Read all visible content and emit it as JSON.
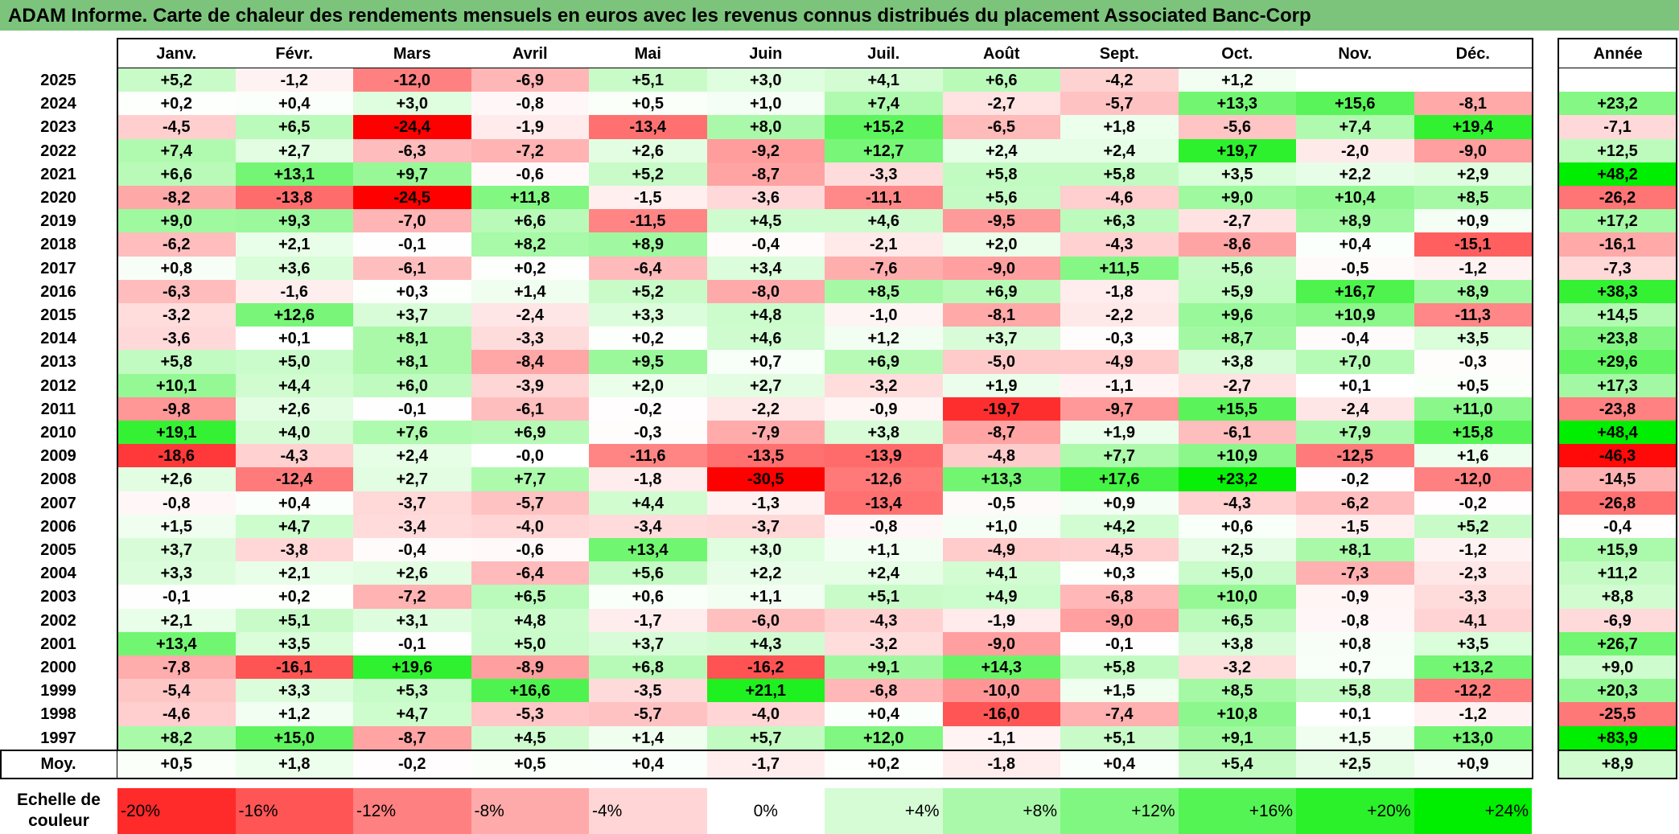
{
  "title": "ADAM Informe. Carte de chaleur des rendements mensuels en euros avec les revenus connus distribués du placement Associated Banc-Corp",
  "chart_data": {
    "type": "heatmap",
    "title": "ADAM Informe. Carte de chaleur des rendements mensuels en euros avec les revenus connus distribués du placement Associated Banc-Corp",
    "columns": [
      "Janv.",
      "Févr.",
      "Mars",
      "Avril",
      "Mai",
      "Juin",
      "Juil.",
      "Août",
      "Sept.",
      "Oct.",
      "Nov.",
      "Déc."
    ],
    "annual_header": "Année",
    "rows": [
      {
        "year": "2025",
        "values": [
          "+5,2",
          "-1,2",
          "-12,0",
          "-6,9",
          "+5,1",
          "+3,0",
          "+4,1",
          "+6,6",
          "-4,2",
          "+1,2",
          "",
          ""
        ],
        "annual": ""
      },
      {
        "year": "2024",
        "values": [
          "+0,2",
          "+0,4",
          "+3,0",
          "-0,8",
          "+0,5",
          "+1,0",
          "+7,4",
          "-2,7",
          "-5,7",
          "+13,3",
          "+15,6",
          "-8,1"
        ],
        "annual": "+23,2"
      },
      {
        "year": "2023",
        "values": [
          "-4,5",
          "+6,5",
          "-24,4",
          "-1,9",
          "-13,4",
          "+8,0",
          "+15,2",
          "-6,5",
          "+1,8",
          "-5,6",
          "+7,4",
          "+19,4"
        ],
        "annual": "-7,1"
      },
      {
        "year": "2022",
        "values": [
          "+7,4",
          "+2,7",
          "-6,3",
          "-7,2",
          "+2,6",
          "-9,2",
          "+12,7",
          "+2,4",
          "+2,4",
          "+19,7",
          "-2,0",
          "-9,0"
        ],
        "annual": "+12,5"
      },
      {
        "year": "2021",
        "values": [
          "+6,6",
          "+13,1",
          "+9,7",
          "-0,6",
          "+5,2",
          "-8,7",
          "-3,3",
          "+5,8",
          "+5,8",
          "+3,5",
          "+2,2",
          "+2,9"
        ],
        "annual": "+48,2"
      },
      {
        "year": "2020",
        "values": [
          "-8,2",
          "-13,8",
          "-24,5",
          "+11,8",
          "-1,5",
          "-3,6",
          "-11,1",
          "+5,6",
          "-4,6",
          "+9,0",
          "+10,4",
          "+8,5"
        ],
        "annual": "-26,2"
      },
      {
        "year": "2019",
        "values": [
          "+9,0",
          "+9,3",
          "-7,0",
          "+6,6",
          "-11,5",
          "+4,5",
          "+4,6",
          "-9,5",
          "+6,3",
          "-2,7",
          "+8,9",
          "+0,9"
        ],
        "annual": "+17,2"
      },
      {
        "year": "2018",
        "values": [
          "-6,2",
          "+2,1",
          "-0,1",
          "+8,2",
          "+8,9",
          "-0,4",
          "-2,1",
          "+2,0",
          "-4,3",
          "-8,6",
          "+0,4",
          "-15,1"
        ],
        "annual": "-16,1"
      },
      {
        "year": "2017",
        "values": [
          "+0,8",
          "+3,6",
          "-6,1",
          "+0,2",
          "-6,4",
          "+3,4",
          "-7,6",
          "-9,0",
          "+11,5",
          "+5,6",
          "-0,5",
          "-1,2"
        ],
        "annual": "-7,3"
      },
      {
        "year": "2016",
        "values": [
          "-6,3",
          "-1,6",
          "+0,3",
          "+1,4",
          "+5,2",
          "-8,0",
          "+8,5",
          "+6,9",
          "-1,8",
          "+5,9",
          "+16,7",
          "+8,9"
        ],
        "annual": "+38,3"
      },
      {
        "year": "2015",
        "values": [
          "-3,2",
          "+12,6",
          "+3,7",
          "-2,4",
          "+3,3",
          "+4,8",
          "-1,0",
          "-8,1",
          "-2,2",
          "+9,6",
          "+10,9",
          "-11,3"
        ],
        "annual": "+14,5"
      },
      {
        "year": "2014",
        "values": [
          "-3,6",
          "+0,1",
          "+8,1",
          "-3,3",
          "+0,2",
          "+4,6",
          "+1,2",
          "+3,7",
          "-0,3",
          "+8,7",
          "-0,4",
          "+3,5"
        ],
        "annual": "+23,8"
      },
      {
        "year": "2013",
        "values": [
          "+5,8",
          "+5,0",
          "+8,1",
          "-8,4",
          "+9,5",
          "+0,7",
          "+6,9",
          "-5,0",
          "-4,9",
          "+3,8",
          "+7,0",
          "-0,3"
        ],
        "annual": "+29,6"
      },
      {
        "year": "2012",
        "values": [
          "+10,1",
          "+4,4",
          "+6,0",
          "-3,9",
          "+2,0",
          "+2,7",
          "-3,2",
          "+1,9",
          "-1,1",
          "-2,7",
          "+0,1",
          "+0,5"
        ],
        "annual": "+17,3"
      },
      {
        "year": "2011",
        "values": [
          "-9,8",
          "+2,6",
          "-0,1",
          "-6,1",
          "-0,2",
          "-2,2",
          "-0,9",
          "-19,7",
          "-9,7",
          "+15,5",
          "-2,4",
          "+11,0"
        ],
        "annual": "-23,8"
      },
      {
        "year": "2010",
        "values": [
          "+19,1",
          "+4,0",
          "+7,6",
          "+6,9",
          "-0,3",
          "-7,9",
          "+3,8",
          "-8,7",
          "+1,9",
          "-6,1",
          "+7,9",
          "+15,8"
        ],
        "annual": "+48,4"
      },
      {
        "year": "2009",
        "values": [
          "-18,6",
          "-4,3",
          "+2,4",
          "-0,0",
          "-11,6",
          "-13,5",
          "-13,9",
          "-4,8",
          "+7,7",
          "+10,9",
          "-12,5",
          "+1,6"
        ],
        "annual": "-46,3"
      },
      {
        "year": "2008",
        "values": [
          "+2,6",
          "-12,4",
          "+2,7",
          "+7,7",
          "-1,8",
          "-30,5",
          "-12,6",
          "+13,3",
          "+17,6",
          "+23,2",
          "-0,2",
          "-12,0"
        ],
        "annual": "-14,5"
      },
      {
        "year": "2007",
        "values": [
          "-0,8",
          "+0,4",
          "-3,7",
          "-5,7",
          "+4,4",
          "-1,3",
          "-13,4",
          "-0,5",
          "+0,9",
          "-4,3",
          "-6,2",
          "-0,2"
        ],
        "annual": "-26,8"
      },
      {
        "year": "2006",
        "values": [
          "+1,5",
          "+4,7",
          "-3,4",
          "-4,0",
          "-3,4",
          "-3,7",
          "-0,8",
          "+1,0",
          "+4,2",
          "+0,6",
          "-1,5",
          "+5,2"
        ],
        "annual": "-0,4"
      },
      {
        "year": "2005",
        "values": [
          "+3,7",
          "-3,8",
          "-0,4",
          "-0,6",
          "+13,4",
          "+3,0",
          "+1,1",
          "-4,9",
          "-4,5",
          "+2,5",
          "+8,1",
          "-1,2"
        ],
        "annual": "+15,9"
      },
      {
        "year": "2004",
        "values": [
          "+3,3",
          "+2,1",
          "+2,6",
          "-6,4",
          "+5,6",
          "+2,2",
          "+2,4",
          "+4,1",
          "+0,3",
          "+5,0",
          "-7,3",
          "-2,3"
        ],
        "annual": "+11,2"
      },
      {
        "year": "2003",
        "values": [
          "-0,1",
          "+0,2",
          "-7,2",
          "+6,5",
          "+0,6",
          "+1,1",
          "+5,1",
          "+4,9",
          "-6,8",
          "+10,0",
          "-0,9",
          "-3,3"
        ],
        "annual": "+8,8"
      },
      {
        "year": "2002",
        "values": [
          "+2,1",
          "+5,1",
          "+3,1",
          "+4,8",
          "-1,7",
          "-6,0",
          "-4,3",
          "-1,9",
          "-9,0",
          "+6,5",
          "-0,8",
          "-4,1"
        ],
        "annual": "-6,9"
      },
      {
        "year": "2001",
        "values": [
          "+13,4",
          "+3,5",
          "-0,1",
          "+5,0",
          "+3,7",
          "+4,3",
          "-3,2",
          "-9,0",
          "-0,1",
          "+3,8",
          "+0,8",
          "+3,5"
        ],
        "annual": "+26,7"
      },
      {
        "year": "2000",
        "values": [
          "-7,8",
          "-16,1",
          "+19,6",
          "-8,9",
          "+6,8",
          "-16,2",
          "+9,1",
          "+14,3",
          "+5,8",
          "-3,2",
          "+0,7",
          "+13,2"
        ],
        "annual": "+9,0"
      },
      {
        "year": "1999",
        "values": [
          "-5,4",
          "+3,3",
          "+5,3",
          "+16,6",
          "-3,5",
          "+21,1",
          "-6,8",
          "-10,0",
          "+1,5",
          "+8,5",
          "+5,8",
          "-12,2"
        ],
        "annual": "+20,3"
      },
      {
        "year": "1998",
        "values": [
          "-4,6",
          "+1,2",
          "+4,7",
          "-5,3",
          "-5,7",
          "-4,0",
          "+0,4",
          "-16,0",
          "-7,4",
          "+10,8",
          "+0,1",
          "-1,2"
        ],
        "annual": "-25,5"
      },
      {
        "year": "1997",
        "values": [
          "+8,2",
          "+15,0",
          "-8,7",
          "+4,5",
          "+1,4",
          "+5,7",
          "+12,0",
          "-1,1",
          "+5,1",
          "+9,1",
          "+1,5",
          "+13,0"
        ],
        "annual": "+83,9"
      }
    ],
    "average": {
      "label": "Moy.",
      "values": [
        "+0,5",
        "+1,8",
        "-0,2",
        "+0,5",
        "+0,4",
        "-1,7",
        "+0,2",
        "-1,8",
        "+0,4",
        "+5,4",
        "+2,5",
        "+0,9"
      ],
      "annual": "+8,9"
    },
    "color_scale": {
      "label": "Echelle de couleur",
      "steps": [
        "-20%",
        "-16%",
        "-12%",
        "-8%",
        "-4%",
        "0%",
        "+4%",
        "+8%",
        "+12%",
        "+16%",
        "+20%",
        "+24%"
      ],
      "negative_color": "#ff0000",
      "zero_color": "#ffffff",
      "positive_color": "#00ee00"
    }
  }
}
